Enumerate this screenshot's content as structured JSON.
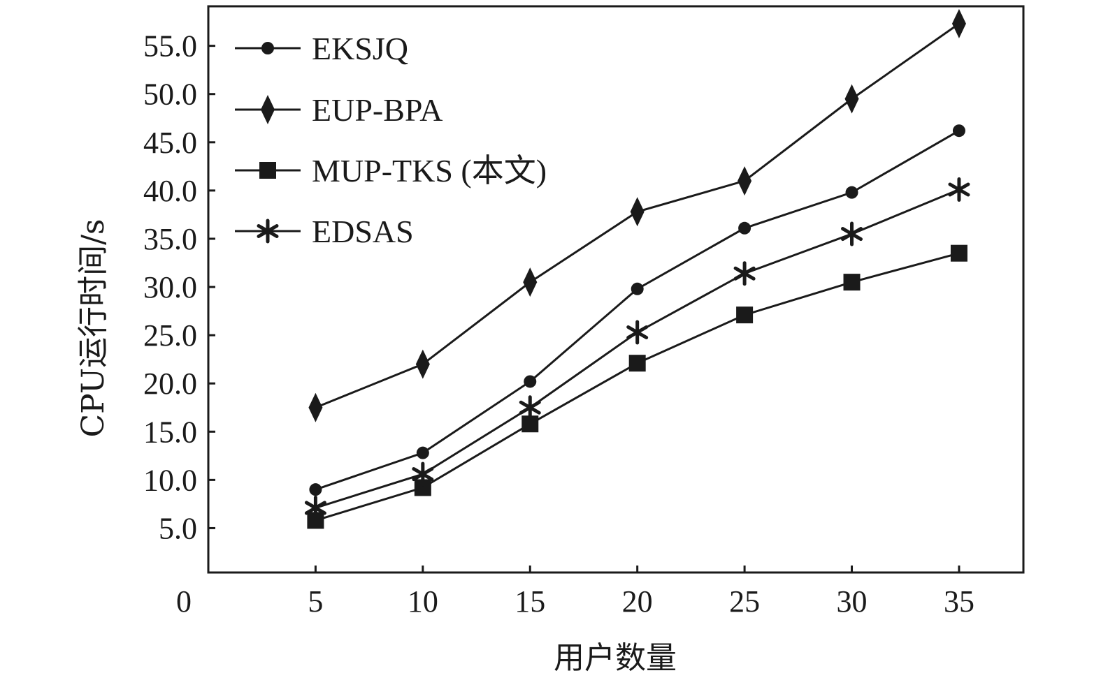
{
  "chart_data": {
    "type": "line",
    "xlabel": "用户数量",
    "ylabel": "CPU运行时间/s",
    "origin_label": "0",
    "x": [
      5,
      10,
      15,
      20,
      25,
      30,
      35
    ],
    "x_tick_labels": [
      "5",
      "10",
      "15",
      "20",
      "25",
      "30",
      "35"
    ],
    "y_ticks": [
      5,
      10,
      15,
      20,
      25,
      30,
      35,
      40,
      45,
      50,
      55
    ],
    "y_tick_labels": [
      "5.0",
      "10.0",
      "15.0",
      "20.0",
      "25.0",
      "30.0",
      "35.0",
      "40.0",
      "45.0",
      "50.0",
      "55.0"
    ],
    "xlim": [
      0,
      38
    ],
    "ylim": [
      0.4,
      59.1
    ],
    "grid": false,
    "legend_position": "top-left",
    "series": [
      {
        "name": "EKSJQ",
        "marker": "circle",
        "values": [
          9.0,
          12.8,
          20.2,
          29.8,
          36.1,
          39.8,
          46.2
        ]
      },
      {
        "name": "EUP-BPA",
        "marker": "diamond",
        "values": [
          17.5,
          22.0,
          30.5,
          37.8,
          41.0,
          49.5,
          57.3
        ]
      },
      {
        "name": "MUP-TKS (本文)",
        "marker": "square",
        "values": [
          5.8,
          9.2,
          15.8,
          22.1,
          27.1,
          30.5,
          33.5
        ]
      },
      {
        "name": "EDSAS",
        "marker": "star",
        "values": [
          7.1,
          10.6,
          17.5,
          25.3,
          31.4,
          35.5,
          40.1
        ]
      }
    ]
  }
}
